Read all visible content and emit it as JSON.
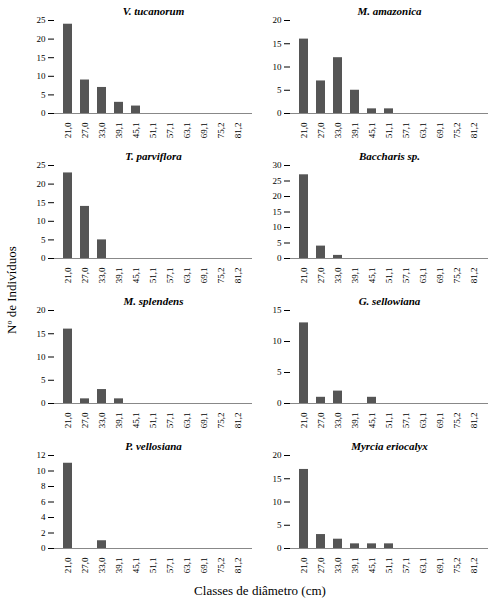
{
  "xlabel": "Classes de diâmetro (cm)",
  "ylabel": "Nº de Indivíduos",
  "chart_data": [
    {
      "type": "bar",
      "title": "V. tucanorum",
      "categories": [
        "21,0",
        "27,0",
        "33,0",
        "39,1",
        "45,1",
        "51,1",
        "57,1",
        "63,1",
        "69,1",
        "75,2",
        "81,2"
      ],
      "values": [
        24,
        9,
        7,
        3,
        2,
        0,
        0,
        0,
        0,
        0,
        0
      ],
      "color": "#555555",
      "ylim": [
        0,
        25
      ],
      "yticks": [
        0,
        5,
        10,
        15,
        20,
        25
      ],
      "grid": false
    },
    {
      "type": "bar",
      "title": "M. amazonica",
      "categories": [
        "21,0",
        "27,0",
        "33,0",
        "39,1",
        "45,1",
        "51,1",
        "57,1",
        "63,1",
        "69,1",
        "75,2",
        "81,2"
      ],
      "values": [
        16,
        7,
        12,
        5,
        1,
        1,
        0,
        0,
        0,
        0,
        0
      ],
      "color": "#555555",
      "ylim": [
        0,
        20
      ],
      "yticks": [
        0,
        5,
        10,
        15,
        20
      ],
      "grid": false
    },
    {
      "type": "bar",
      "title": "T. parviflora",
      "categories": [
        "21,0",
        "27,0",
        "33,0",
        "39,1",
        "45,1",
        "51,1",
        "57,1",
        "63,1",
        "69,1",
        "75,2",
        "81,2"
      ],
      "values": [
        23,
        14,
        5,
        0,
        0,
        0,
        0,
        0,
        0,
        0,
        0
      ],
      "color": "#555555",
      "ylim": [
        0,
        25
      ],
      "yticks": [
        0,
        5,
        10,
        15,
        20,
        25
      ],
      "grid": false
    },
    {
      "type": "bar",
      "title": "Baccharis sp.",
      "categories": [
        "21,0",
        "27,0",
        "33,0",
        "39,1",
        "45,1",
        "51,1",
        "57,1",
        "63,1",
        "69,1",
        "75,2",
        "81,2"
      ],
      "values": [
        27,
        4,
        1,
        0,
        0,
        0,
        0,
        0,
        0,
        0,
        0
      ],
      "color": "#555555",
      "ylim": [
        0,
        30
      ],
      "yticks": [
        0,
        5,
        10,
        15,
        20,
        25,
        30
      ],
      "grid": false
    },
    {
      "type": "bar",
      "title": "M. splendens",
      "categories": [
        "21,0",
        "27,0",
        "33,0",
        "39,1",
        "45,1",
        "51,1",
        "57,1",
        "63,1",
        "69,1",
        "75,2",
        "81,2"
      ],
      "values": [
        16,
        1,
        3,
        1,
        0,
        0,
        0,
        0,
        0,
        0,
        0
      ],
      "color": "#555555",
      "ylim": [
        0,
        20
      ],
      "yticks": [
        0,
        5,
        10,
        15,
        20
      ],
      "grid": false
    },
    {
      "type": "bar",
      "title": "G. sellowiana",
      "categories": [
        "21,0",
        "27,0",
        "33,0",
        "39,1",
        "45,1",
        "51,1",
        "57,1",
        "63,1",
        "69,1",
        "75,2",
        "81,2"
      ],
      "values": [
        13,
        1,
        2,
        0,
        1,
        0,
        0,
        0,
        0,
        0,
        0
      ],
      "color": "#555555",
      "ylim": [
        0,
        15
      ],
      "yticks": [
        0,
        5,
        10,
        15
      ],
      "grid": false
    },
    {
      "type": "bar",
      "title": "P. vellosiana",
      "categories": [
        "21,0",
        "27,0",
        "33,0",
        "39,1",
        "45,1",
        "51,1",
        "57,1",
        "63,1",
        "69,1",
        "75,2",
        "81,2"
      ],
      "values": [
        11,
        0,
        1,
        0,
        0,
        0,
        0,
        0,
        0,
        0,
        0
      ],
      "color": "#555555",
      "ylim": [
        0,
        12
      ],
      "yticks": [
        0,
        2,
        4,
        6,
        8,
        10,
        12
      ],
      "grid": false
    },
    {
      "type": "bar",
      "title": "Myrcia eriocalyx",
      "categories": [
        "21,0",
        "27,0",
        "33,0",
        "39,1",
        "45,1",
        "51,1",
        "57,1",
        "63,1",
        "69,1",
        "75,2",
        "81,2"
      ],
      "values": [
        17,
        3,
        2,
        1,
        1,
        1,
        0,
        0,
        0,
        0,
        0
      ],
      "color": "#555555",
      "ylim": [
        0,
        20
      ],
      "yticks": [
        0,
        5,
        10,
        15,
        20
      ],
      "grid": false
    }
  ]
}
